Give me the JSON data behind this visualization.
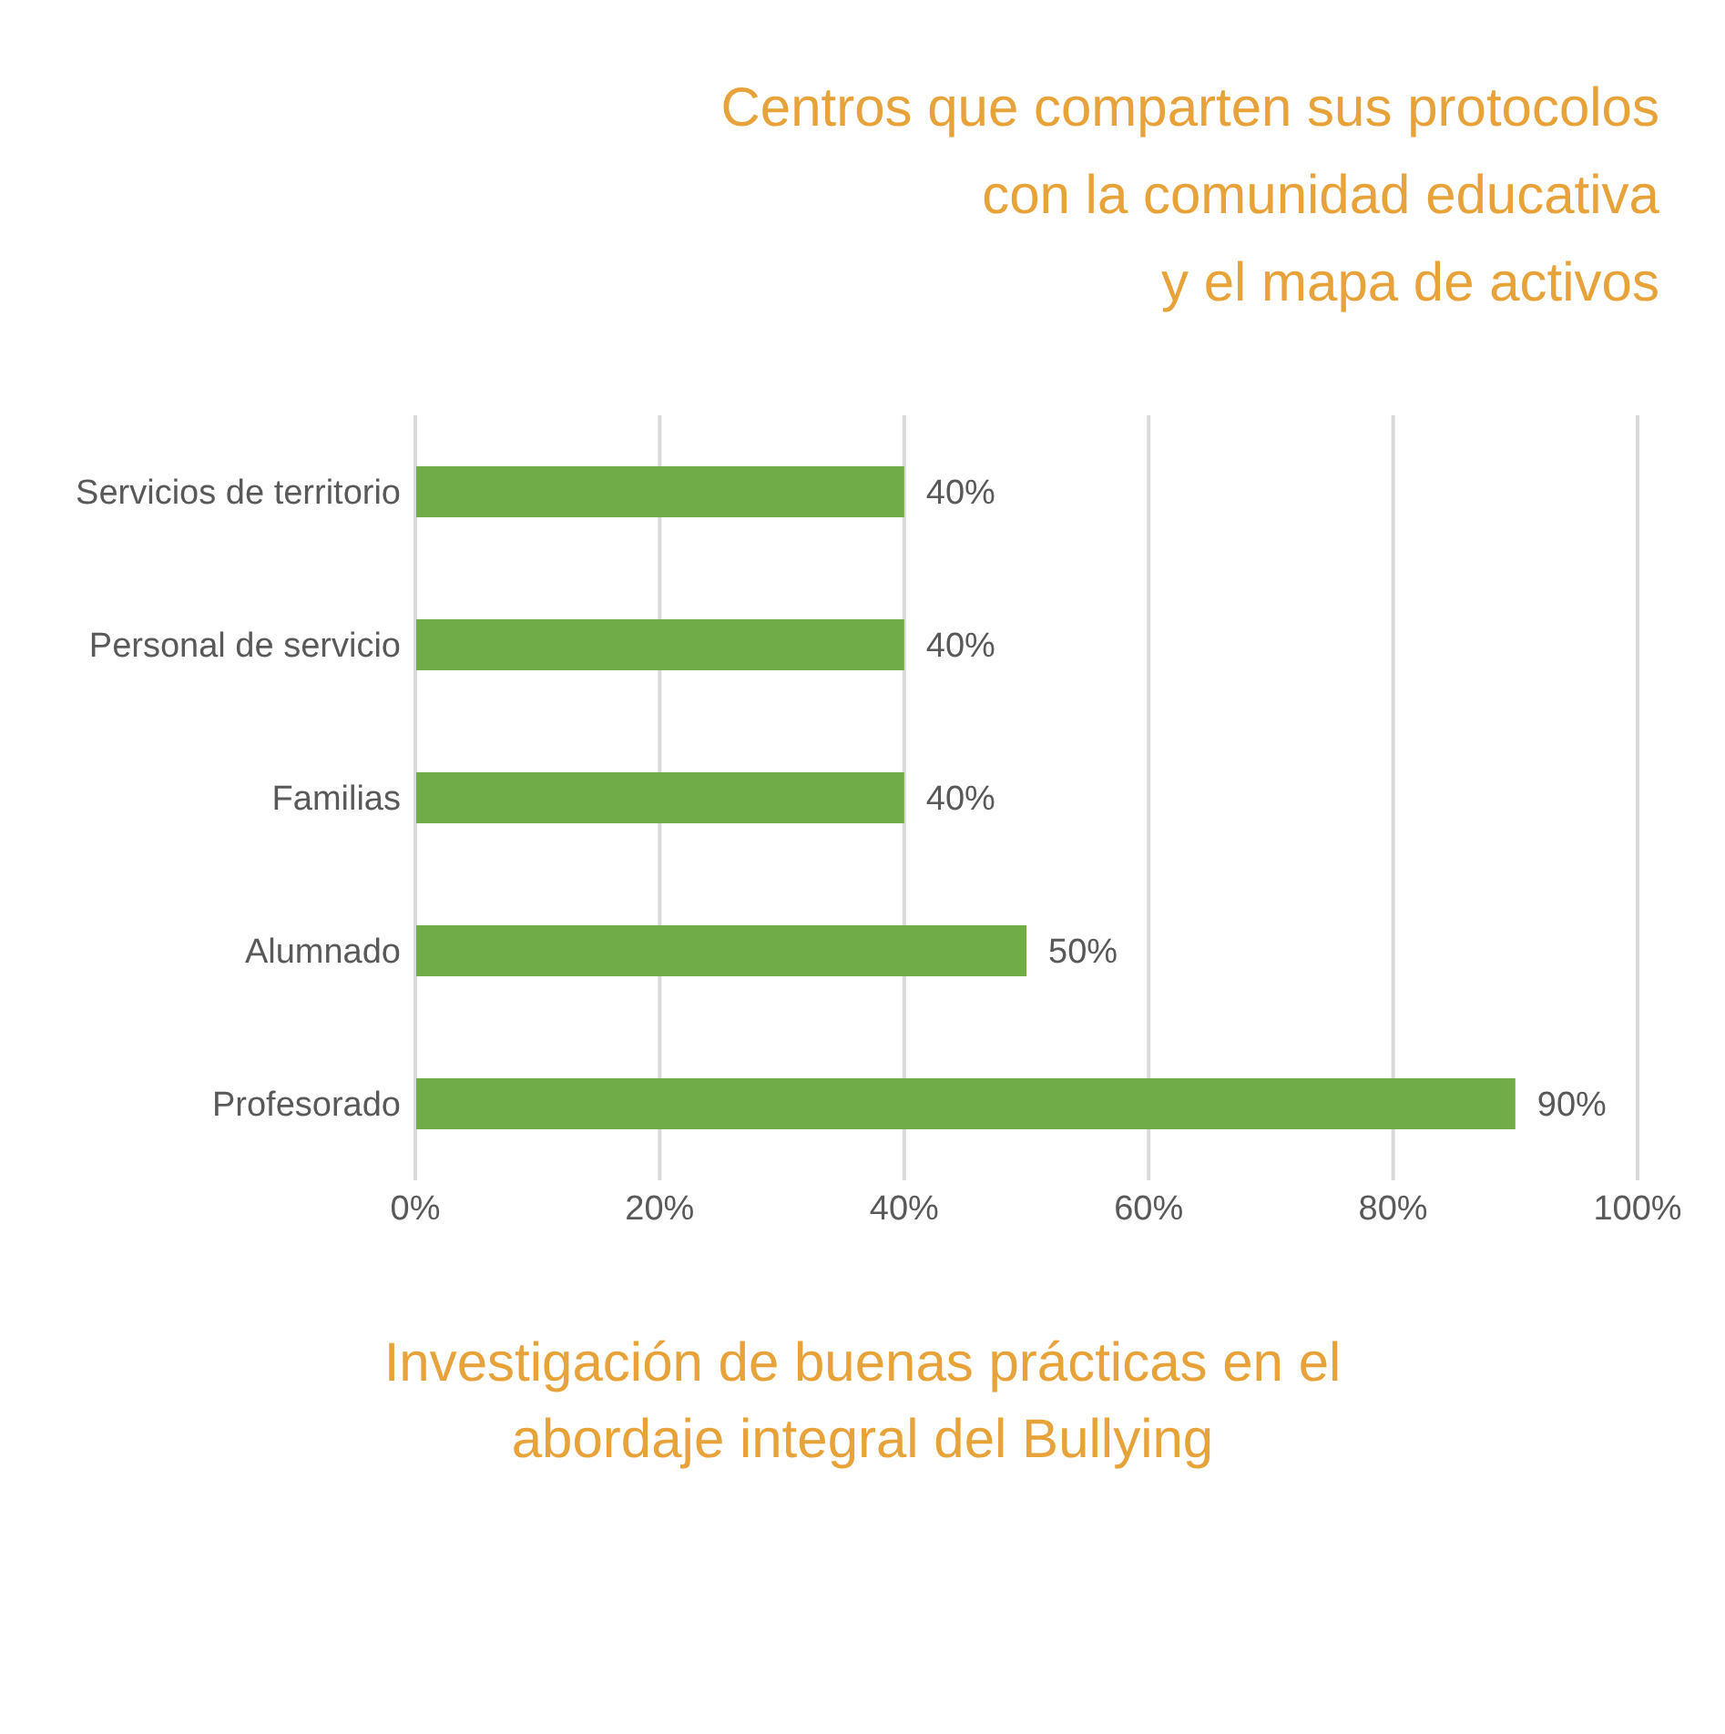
{
  "chart_data": {
    "type": "bar",
    "orientation": "horizontal",
    "title": "Centros que comparten sus protocolos\ncon la comunidad educativa\ny el mapa de activos",
    "categories": [
      "Servicios de territorio",
      "Personal de servicio",
      "Familias",
      "Alumnado",
      "Profesorado"
    ],
    "values": [
      40,
      40,
      40,
      50,
      90
    ],
    "color": "#70ad47",
    "value_labels": [
      "40%",
      "40%",
      "40%",
      "50%",
      "90%"
    ],
    "xlim": [
      0,
      100
    ],
    "xticks": [
      {
        "value": 0,
        "label": "0%"
      },
      {
        "value": 20,
        "label": "20%"
      },
      {
        "value": 40,
        "label": "40%"
      },
      {
        "value": 60,
        "label": "60%"
      },
      {
        "value": 80,
        "label": "80%"
      },
      {
        "value": 100,
        "label": "100%"
      }
    ],
    "grid": "x",
    "legend": false,
    "annotations": [
      "Investigación de buenas prácticas en el\nabordaje integral del Bullying"
    ]
  }
}
